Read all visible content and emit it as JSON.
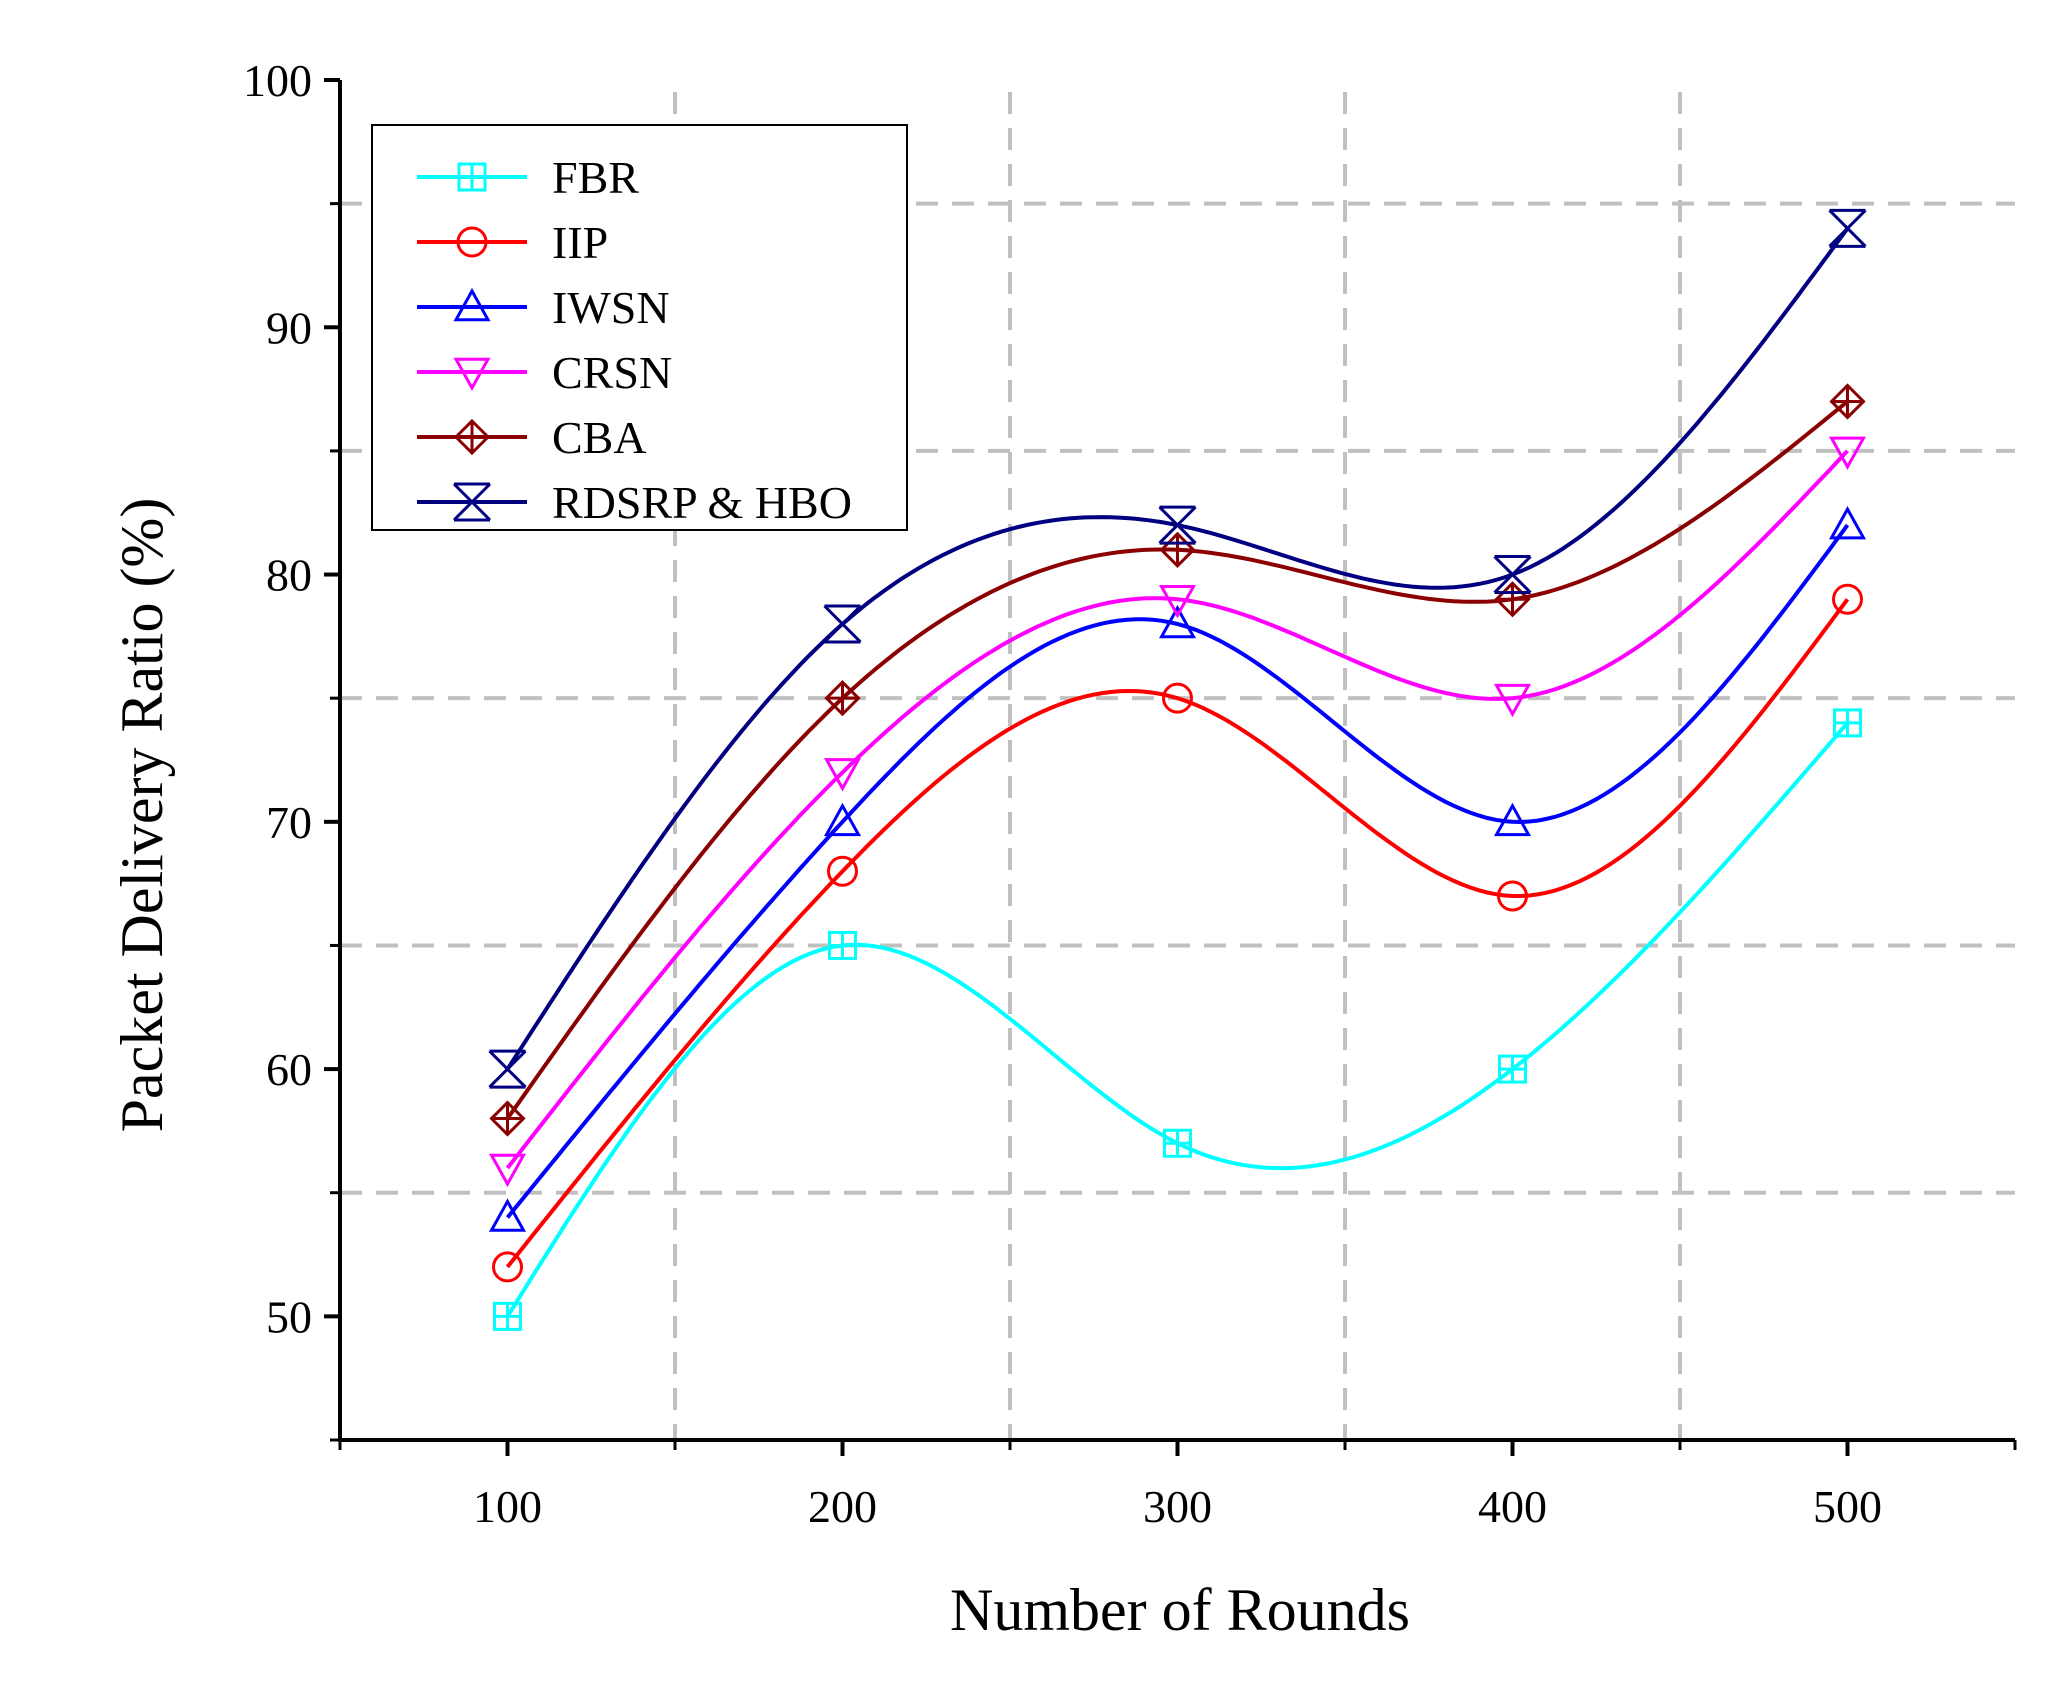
{
  "chart_data": {
    "type": "line",
    "smooth": true,
    "xlabel": "Number of Rounds",
    "ylabel": "Packet Delivery Ratio (%)",
    "x": [
      100,
      200,
      300,
      400,
      500
    ],
    "xlim": [
      50,
      550
    ],
    "ylim": [
      45,
      100
    ],
    "xticks": [
      100,
      200,
      300,
      400,
      500
    ],
    "xminor": [
      150,
      250,
      350,
      450
    ],
    "yticks": [
      50,
      60,
      70,
      80,
      90,
      100
    ],
    "yminor": [
      55,
      65,
      75,
      85,
      95
    ],
    "xtick_labels": [
      "100",
      "200",
      "300",
      "400",
      "500"
    ],
    "ytick_labels": [
      "50",
      "60",
      "70",
      "80",
      "90",
      "100"
    ],
    "grid": "dashed at minor ticks",
    "legend_position": "top-left",
    "series": [
      {
        "name": "FBR",
        "color": "#00ffff",
        "marker": "square-plus",
        "values": [
          50,
          65,
          57,
          60,
          74
        ]
      },
      {
        "name": "IIP",
        "color": "#ff0000",
        "marker": "circle",
        "values": [
          52,
          68,
          75,
          67,
          79
        ]
      },
      {
        "name": "IWSN",
        "color": "#0000ff",
        "marker": "triangle-up",
        "values": [
          54,
          70,
          78,
          70,
          82
        ]
      },
      {
        "name": "CRSN",
        "color": "#ff00ff",
        "marker": "triangle-down",
        "values": [
          56,
          72,
          79,
          75,
          85
        ]
      },
      {
        "name": "CBA",
        "color": "#8b0000",
        "marker": "diamond-plus",
        "values": [
          58,
          75,
          81,
          79,
          87
        ]
      },
      {
        "name": "RDSRP & HBO",
        "color": "#000080",
        "marker": "x-cross",
        "values": [
          60,
          78,
          82,
          80,
          94
        ]
      }
    ]
  }
}
